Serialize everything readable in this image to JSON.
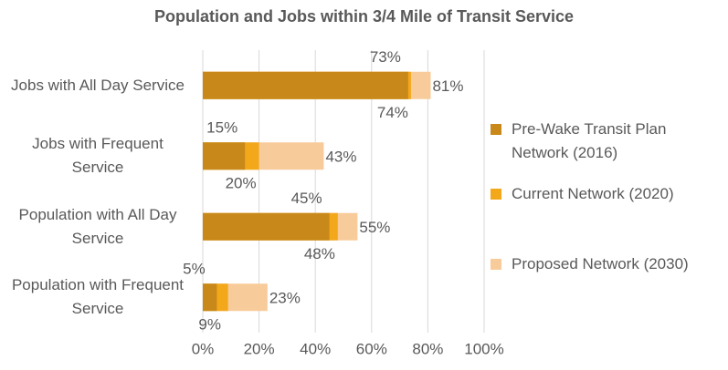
{
  "chart_data": {
    "type": "bar",
    "orientation": "horizontal",
    "title": "Population and Jobs within 3/4 Mile of Transit Service",
    "categories": [
      "Jobs with All Day Service",
      "Jobs with Frequent Service",
      "Population with All Day Service",
      "Population with Frequent Service"
    ],
    "series": [
      {
        "name": "Pre-Wake Transit Plan Network (2016)",
        "color": "#c8891a",
        "values": [
          73,
          15,
          45,
          5
        ],
        "value_labels": [
          "73%",
          "15%",
          "45%",
          "5%"
        ]
      },
      {
        "name": "Current Network (2020)",
        "color": "#f3a81c",
        "values": [
          74,
          20,
          48,
          9
        ],
        "value_labels": [
          "74%",
          "20%",
          "48%",
          "9%"
        ]
      },
      {
        "name": "Proposed Network (2030)",
        "color": "#f8cb9a",
        "values": [
          81,
          43,
          55,
          23
        ],
        "value_labels": [
          "81%",
          "43%",
          "55%",
          "23%"
        ]
      }
    ],
    "xlim": [
      0,
      100
    ],
    "xticks": [
      {
        "value": 0,
        "label": "0%"
      },
      {
        "value": 20,
        "label": "20%"
      },
      {
        "value": 40,
        "label": "40%"
      },
      {
        "value": 60,
        "label": "60%"
      },
      {
        "value": 80,
        "label": "80%"
      },
      {
        "value": 100,
        "label": "100%"
      }
    ],
    "grid": true,
    "legend": "right"
  }
}
